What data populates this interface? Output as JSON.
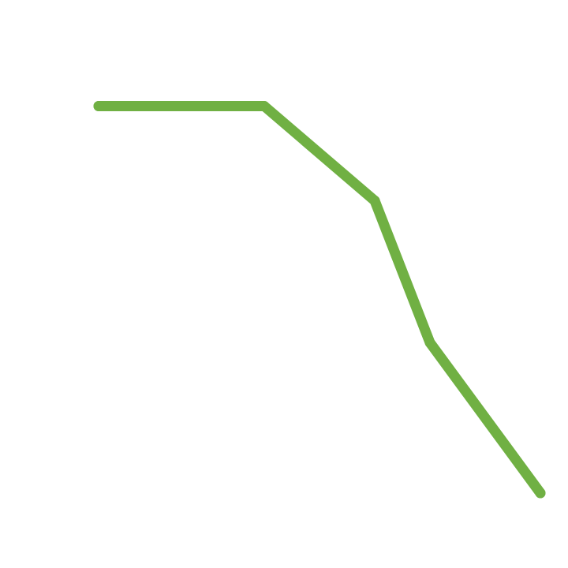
{
  "chart_data": {
    "type": "line",
    "title": "",
    "xlabel": "",
    "ylabel": "",
    "grid": false,
    "legend": "none",
    "x": [
      0,
      3,
      5,
      6,
      8
    ],
    "xlim": [
      0,
      8
    ],
    "ylim": [
      0,
      1
    ],
    "series": [
      {
        "color": "#70b043",
        "values": [
          0.9,
          0.9,
          0.68,
          0.35,
          0
        ]
      }
    ]
  }
}
